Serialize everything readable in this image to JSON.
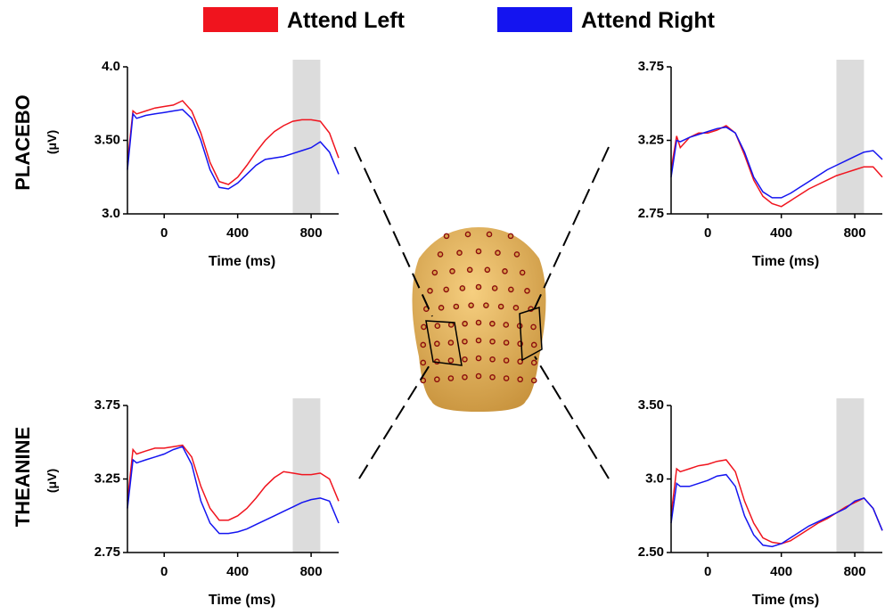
{
  "legend": [
    {
      "name": "Attend Left",
      "color": "#f0141e"
    },
    {
      "name": "Attend Right",
      "color": "#1414f0"
    }
  ],
  "rows": [
    "PLACEBO",
    "THEANINE"
  ],
  "chart_data": [
    {
      "type": "line",
      "ylabel": "(μV)",
      "xlabel": "Time (ms)",
      "x": [
        -200,
        -170,
        -150,
        -100,
        -50,
        0,
        50,
        100,
        150,
        200,
        250,
        300,
        350,
        400,
        450,
        500,
        550,
        600,
        650,
        700,
        750,
        800,
        850,
        900,
        950
      ],
      "series": [
        {
          "color": "#f0141e",
          "values": [
            3.35,
            3.7,
            3.68,
            3.7,
            3.72,
            3.73,
            3.74,
            3.77,
            3.7,
            3.55,
            3.35,
            3.22,
            3.2,
            3.25,
            3.33,
            3.42,
            3.5,
            3.56,
            3.6,
            3.63,
            3.64,
            3.64,
            3.63,
            3.55,
            3.38
          ]
        },
        {
          "color": "#1414f0",
          "values": [
            3.3,
            3.68,
            3.65,
            3.67,
            3.68,
            3.69,
            3.7,
            3.71,
            3.65,
            3.5,
            3.3,
            3.18,
            3.17,
            3.21,
            3.27,
            3.33,
            3.37,
            3.38,
            3.39,
            3.41,
            3.43,
            3.45,
            3.49,
            3.42,
            3.27
          ]
        }
      ],
      "xlim": [
        -200,
        950
      ],
      "xticks": [
        0,
        400,
        800
      ],
      "ylim": [
        3,
        4
      ],
      "yticks": [
        {
          "value": 3,
          "label": "3.0"
        },
        {
          "value": 3.5,
          "label": "3.50"
        },
        {
          "value": 4,
          "label": "4.0"
        }
      ],
      "highlight": [
        700,
        850
      ]
    },
    {
      "type": "line",
      "xlabel": "Time (ms)",
      "x": [
        -200,
        -170,
        -150,
        -100,
        -50,
        0,
        50,
        100,
        150,
        200,
        250,
        300,
        350,
        400,
        450,
        500,
        550,
        600,
        650,
        700,
        750,
        800,
        850,
        900,
        950
      ],
      "series": [
        {
          "color": "#f0141e",
          "values": [
            3.05,
            3.28,
            3.2,
            3.27,
            3.3,
            3.3,
            3.32,
            3.35,
            3.3,
            3.15,
            2.98,
            2.87,
            2.82,
            2.8,
            2.84,
            2.88,
            2.92,
            2.95,
            2.98,
            3.01,
            3.03,
            3.05,
            3.07,
            3.07,
            3.0
          ]
        },
        {
          "color": "#1414f0",
          "values": [
            3.0,
            3.25,
            3.24,
            3.27,
            3.29,
            3.31,
            3.33,
            3.34,
            3.3,
            3.17,
            3.0,
            2.9,
            2.86,
            2.86,
            2.89,
            2.93,
            2.97,
            3.01,
            3.05,
            3.08,
            3.11,
            3.14,
            3.17,
            3.18,
            3.12
          ]
        }
      ],
      "xlim": [
        -200,
        950
      ],
      "xticks": [
        0,
        400,
        800
      ],
      "ylim": [
        2.75,
        3.75
      ],
      "yticks": [
        2.75,
        3.25,
        3.75
      ],
      "highlight": [
        700,
        850
      ]
    },
    {
      "type": "line",
      "ylabel": "(μV)",
      "xlabel": "Time (ms)",
      "x": [
        -200,
        -170,
        -150,
        -100,
        -50,
        0,
        50,
        100,
        150,
        200,
        250,
        300,
        350,
        400,
        450,
        500,
        550,
        600,
        650,
        700,
        750,
        800,
        850,
        900,
        950
      ],
      "series": [
        {
          "color": "#f0141e",
          "values": [
            3.1,
            3.45,
            3.42,
            3.44,
            3.46,
            3.46,
            3.47,
            3.48,
            3.4,
            3.2,
            3.05,
            2.97,
            2.97,
            3.0,
            3.05,
            3.12,
            3.2,
            3.26,
            3.3,
            3.29,
            3.28,
            3.28,
            3.29,
            3.25,
            3.1
          ]
        },
        {
          "color": "#1414f0",
          "values": [
            3.05,
            3.38,
            3.36,
            3.38,
            3.4,
            3.42,
            3.45,
            3.47,
            3.35,
            3.1,
            2.95,
            2.88,
            2.88,
            2.89,
            2.91,
            2.94,
            2.97,
            3.0,
            3.03,
            3.06,
            3.09,
            3.11,
            3.12,
            3.1,
            2.95
          ]
        }
      ],
      "xlim": [
        -200,
        950
      ],
      "xticks": [
        0,
        400,
        800
      ],
      "ylim": [
        2.75,
        3.75
      ],
      "yticks": [
        2.75,
        3.25,
        3.75
      ],
      "highlight": [
        700,
        850
      ]
    },
    {
      "type": "line",
      "xlabel": "Time (ms)",
      "x": [
        -200,
        -170,
        -150,
        -100,
        -50,
        0,
        50,
        100,
        150,
        200,
        250,
        300,
        350,
        400,
        450,
        500,
        550,
        600,
        650,
        700,
        750,
        800,
        850,
        900,
        950
      ],
      "series": [
        {
          "color": "#f0141e",
          "values": [
            2.75,
            3.07,
            3.05,
            3.07,
            3.09,
            3.1,
            3.12,
            3.13,
            3.05,
            2.85,
            2.7,
            2.6,
            2.57,
            2.56,
            2.58,
            2.62,
            2.66,
            2.7,
            2.73,
            2.77,
            2.81,
            2.84,
            2.87,
            2.8,
            2.65
          ]
        },
        {
          "color": "#1414f0",
          "values": [
            2.7,
            2.97,
            2.95,
            2.95,
            2.97,
            2.99,
            3.02,
            3.03,
            2.95,
            2.75,
            2.62,
            2.55,
            2.54,
            2.56,
            2.6,
            2.64,
            2.68,
            2.71,
            2.74,
            2.77,
            2.8,
            2.85,
            2.87,
            2.8,
            2.65
          ]
        }
      ],
      "xlim": [
        -200,
        950
      ],
      "xticks": [
        0,
        400,
        800
      ],
      "ylim": [
        2.5,
        3.5
      ],
      "yticks": [
        {
          "value": 2.5,
          "label": "2.50"
        },
        {
          "value": 3,
          "label": "3.0"
        },
        {
          "value": 3.5,
          "label": "3.50"
        }
      ],
      "highlight": [
        700,
        850
      ]
    }
  ]
}
